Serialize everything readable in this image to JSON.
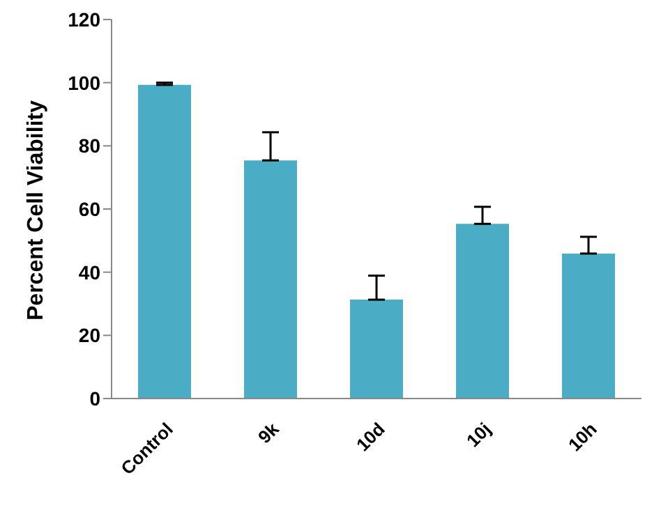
{
  "chart_data": {
    "type": "bar",
    "ylabel": "Percent Cell Viability",
    "categories": [
      "Control",
      "9k",
      "10d",
      "10j",
      "10h"
    ],
    "values": [
      99.3,
      75.4,
      31.3,
      55.3,
      45.9
    ],
    "errors": [
      [
        99.3,
        100
      ],
      [
        75.4,
        84.3
      ],
      [
        31.3,
        38.9
      ],
      [
        55.3,
        60.7
      ],
      [
        45.9,
        51.2
      ]
    ],
    "color": "#4bacc6",
    "ylim": [
      0,
      120
    ],
    "yticks": [
      0,
      20,
      40,
      60,
      80,
      100,
      120
    ],
    "grid": false,
    "legend": false
  }
}
